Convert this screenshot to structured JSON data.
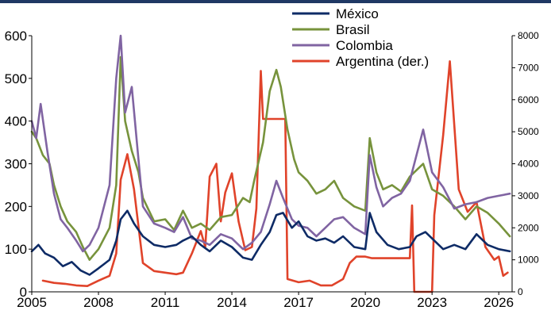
{
  "colors": {
    "top_bar": "#1f3864",
    "axis": "#000000"
  },
  "chart_data": {
    "type": "line",
    "title": "",
    "xlabel": "",
    "ylabel": "",
    "x_ticks": [
      "2005",
      "2008",
      "2011",
      "2014",
      "2017",
      "2020",
      "2023",
      "2026"
    ],
    "xlim": [
      2005.0,
      2026.6
    ],
    "y_left": {
      "ticks": [
        "0",
        "100",
        "200",
        "300",
        "400",
        "500",
        "600"
      ],
      "lim": [
        0,
        600
      ]
    },
    "y_right": {
      "ticks": [
        "0",
        "1000",
        "2000",
        "3000",
        "4000",
        "5000",
        "6000",
        "7000",
        "8000"
      ],
      "lim": [
        0,
        8000
      ]
    },
    "grid": false,
    "legend": "top-right",
    "series": [
      {
        "name": "México",
        "axis": "left",
        "color": "#0e2b66",
        "points": [
          [
            2005.0,
            95
          ],
          [
            2005.3,
            110
          ],
          [
            2005.6,
            90
          ],
          [
            2006.0,
            80
          ],
          [
            2006.4,
            60
          ],
          [
            2006.8,
            70
          ],
          [
            2007.2,
            50
          ],
          [
            2007.6,
            40
          ],
          [
            2008.0,
            55
          ],
          [
            2008.5,
            75
          ],
          [
            2008.8,
            120
          ],
          [
            2009.0,
            170
          ],
          [
            2009.3,
            190
          ],
          [
            2009.6,
            160
          ],
          [
            2010.0,
            130
          ],
          [
            2010.5,
            110
          ],
          [
            2011.0,
            105
          ],
          [
            2011.5,
            110
          ],
          [
            2011.8,
            120
          ],
          [
            2012.2,
            130
          ],
          [
            2012.6,
            110
          ],
          [
            2013.0,
            95
          ],
          [
            2013.5,
            120
          ],
          [
            2014.0,
            105
          ],
          [
            2014.5,
            80
          ],
          [
            2014.9,
            75
          ],
          [
            2015.3,
            110
          ],
          [
            2015.7,
            140
          ],
          [
            2016.0,
            180
          ],
          [
            2016.3,
            185
          ],
          [
            2016.7,
            150
          ],
          [
            2017.0,
            165
          ],
          [
            2017.4,
            130
          ],
          [
            2017.8,
            120
          ],
          [
            2018.2,
            125
          ],
          [
            2018.6,
            115
          ],
          [
            2019.0,
            130
          ],
          [
            2019.5,
            105
          ],
          [
            2020.0,
            100
          ],
          [
            2020.2,
            185
          ],
          [
            2020.5,
            140
          ],
          [
            2021.0,
            110
          ],
          [
            2021.5,
            100
          ],
          [
            2022.0,
            105
          ],
          [
            2022.3,
            130
          ],
          [
            2022.7,
            140
          ],
          [
            2023.0,
            125
          ],
          [
            2023.5,
            100
          ],
          [
            2024.0,
            110
          ],
          [
            2024.5,
            100
          ],
          [
            2025.0,
            135
          ],
          [
            2025.5,
            110
          ],
          [
            2026.0,
            100
          ],
          [
            2026.5,
            95
          ]
        ]
      },
      {
        "name": "Brasil",
        "axis": "left",
        "color": "#77933c",
        "points": [
          [
            2005.0,
            375
          ],
          [
            2005.2,
            360
          ],
          [
            2005.5,
            320
          ],
          [
            2005.8,
            300
          ],
          [
            2006.0,
            250
          ],
          [
            2006.3,
            200
          ],
          [
            2006.6,
            165
          ],
          [
            2007.0,
            140
          ],
          [
            2007.3,
            105
          ],
          [
            2007.6,
            75
          ],
          [
            2008.0,
            100
          ],
          [
            2008.5,
            150
          ],
          [
            2008.8,
            250
          ],
          [
            2009.0,
            550
          ],
          [
            2009.2,
            400
          ],
          [
            2009.5,
            330
          ],
          [
            2009.8,
            280
          ],
          [
            2010.0,
            220
          ],
          [
            2010.5,
            165
          ],
          [
            2011.0,
            170
          ],
          [
            2011.4,
            145
          ],
          [
            2011.8,
            190
          ],
          [
            2012.2,
            150
          ],
          [
            2012.6,
            160
          ],
          [
            2013.0,
            145
          ],
          [
            2013.5,
            175
          ],
          [
            2014.0,
            180
          ],
          [
            2014.5,
            220
          ],
          [
            2014.8,
            210
          ],
          [
            2015.0,
            260
          ],
          [
            2015.4,
            350
          ],
          [
            2015.7,
            470
          ],
          [
            2016.0,
            520
          ],
          [
            2016.2,
            480
          ],
          [
            2016.5,
            380
          ],
          [
            2016.8,
            310
          ],
          [
            2017.0,
            280
          ],
          [
            2017.4,
            260
          ],
          [
            2017.8,
            230
          ],
          [
            2018.2,
            240
          ],
          [
            2018.6,
            260
          ],
          [
            2019.0,
            220
          ],
          [
            2019.5,
            200
          ],
          [
            2020.0,
            190
          ],
          [
            2020.2,
            360
          ],
          [
            2020.5,
            280
          ],
          [
            2020.8,
            240
          ],
          [
            2021.2,
            250
          ],
          [
            2021.6,
            235
          ],
          [
            2022.0,
            270
          ],
          [
            2022.3,
            285
          ],
          [
            2022.6,
            300
          ],
          [
            2023.0,
            240
          ],
          [
            2023.5,
            225
          ],
          [
            2024.0,
            200
          ],
          [
            2024.5,
            170
          ],
          [
            2025.0,
            200
          ],
          [
            2025.5,
            185
          ],
          [
            2026.0,
            160
          ],
          [
            2026.5,
            130
          ]
        ]
      },
      {
        "name": "Colombia",
        "axis": "left",
        "color": "#8064a2",
        "points": [
          [
            2005.0,
            400
          ],
          [
            2005.2,
            360
          ],
          [
            2005.4,
            440
          ],
          [
            2005.7,
            330
          ],
          [
            2006.0,
            230
          ],
          [
            2006.3,
            170
          ],
          [
            2006.6,
            150
          ],
          [
            2007.0,
            120
          ],
          [
            2007.3,
            95
          ],
          [
            2007.6,
            110
          ],
          [
            2008.0,
            150
          ],
          [
            2008.5,
            250
          ],
          [
            2008.8,
            500
          ],
          [
            2009.0,
            600
          ],
          [
            2009.2,
            420
          ],
          [
            2009.5,
            480
          ],
          [
            2009.8,
            310
          ],
          [
            2010.0,
            200
          ],
          [
            2010.5,
            160
          ],
          [
            2011.0,
            150
          ],
          [
            2011.4,
            140
          ],
          [
            2011.8,
            175
          ],
          [
            2012.2,
            125
          ],
          [
            2012.6,
            120
          ],
          [
            2013.0,
            110
          ],
          [
            2013.5,
            135
          ],
          [
            2014.0,
            125
          ],
          [
            2014.5,
            100
          ],
          [
            2014.9,
            115
          ],
          [
            2015.3,
            140
          ],
          [
            2015.7,
            205
          ],
          [
            2016.0,
            260
          ],
          [
            2016.3,
            220
          ],
          [
            2016.7,
            170
          ],
          [
            2017.0,
            155
          ],
          [
            2017.4,
            150
          ],
          [
            2017.8,
            130
          ],
          [
            2018.2,
            150
          ],
          [
            2018.6,
            170
          ],
          [
            2019.0,
            175
          ],
          [
            2019.5,
            150
          ],
          [
            2020.0,
            135
          ],
          [
            2020.2,
            320
          ],
          [
            2020.5,
            245
          ],
          [
            2020.8,
            200
          ],
          [
            2021.2,
            220
          ],
          [
            2021.6,
            230
          ],
          [
            2022.0,
            260
          ],
          [
            2022.3,
            320
          ],
          [
            2022.6,
            380
          ],
          [
            2023.0,
            280
          ],
          [
            2023.5,
            245
          ],
          [
            2024.0,
            195
          ],
          [
            2024.5,
            205
          ],
          [
            2025.0,
            210
          ],
          [
            2025.5,
            220
          ],
          [
            2026.0,
            225
          ],
          [
            2026.5,
            230
          ]
        ]
      },
      {
        "name": "Argentina (der.)",
        "axis": "right",
        "color": "#e0432a",
        "points": [
          [
            2005.5,
            350
          ],
          [
            2006.0,
            280
          ],
          [
            2006.5,
            250
          ],
          [
            2007.0,
            200
          ],
          [
            2007.5,
            180
          ],
          [
            2008.0,
            350
          ],
          [
            2008.5,
            500
          ],
          [
            2008.8,
            1200
          ],
          [
            2009.0,
            3500
          ],
          [
            2009.3,
            4300
          ],
          [
            2009.6,
            3200
          ],
          [
            2010.0,
            900
          ],
          [
            2010.5,
            650
          ],
          [
            2011.0,
            600
          ],
          [
            2011.5,
            550
          ],
          [
            2011.8,
            600
          ],
          [
            2012.2,
            1200
          ],
          [
            2012.6,
            1900
          ],
          [
            2012.8,
            1400
          ],
          [
            2013.0,
            3600
          ],
          [
            2013.3,
            4000
          ],
          [
            2013.5,
            2200
          ],
          [
            2013.7,
            3100
          ],
          [
            2014.0,
            3700
          ],
          [
            2014.3,
            2200
          ],
          [
            2014.6,
            1300
          ],
          [
            2014.9,
            1400
          ],
          [
            2015.1,
            2600
          ],
          [
            2015.3,
            6900
          ],
          [
            2015.4,
            5400
          ],
          [
            2016.0,
            5400
          ],
          [
            2016.4,
            5400
          ],
          [
            2016.5,
            400
          ],
          [
            2017.0,
            300
          ],
          [
            2017.5,
            350
          ],
          [
            2018.0,
            200
          ],
          [
            2018.5,
            200
          ],
          [
            2019.0,
            400
          ],
          [
            2019.3,
            900
          ],
          [
            2019.6,
            1100
          ],
          [
            2020.0,
            1100
          ],
          [
            2020.3,
            1050
          ],
          [
            2022.0,
            1050
          ],
          [
            2022.1,
            2700
          ],
          [
            2022.2,
            0
          ],
          [
            2023.0,
            0
          ],
          [
            2023.1,
            2400
          ],
          [
            2023.5,
            4900
          ],
          [
            2023.8,
            7200
          ],
          [
            2024.0,
            5200
          ],
          [
            2024.2,
            3200
          ],
          [
            2024.6,
            2500
          ],
          [
            2025.0,
            2800
          ],
          [
            2025.4,
            1400
          ],
          [
            2025.8,
            1000
          ],
          [
            2026.0,
            1100
          ],
          [
            2026.2,
            500
          ],
          [
            2026.4,
            600
          ]
        ]
      }
    ]
  }
}
